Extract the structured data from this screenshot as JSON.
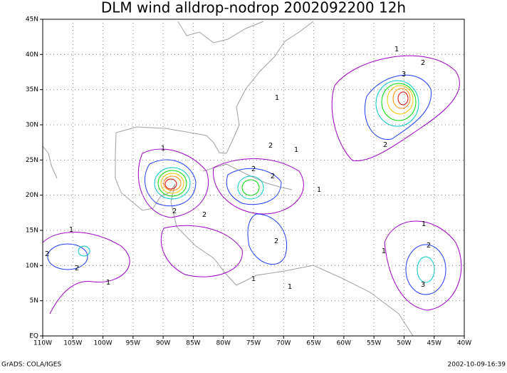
{
  "title": "DLM wind alldrop-nodrop 2002092200 12h",
  "map": {
    "lon_labels": [
      "110W",
      "105W",
      "100W",
      "95W",
      "90W",
      "85W",
      "80W",
      "75W",
      "70W",
      "65W",
      "60W",
      "55W",
      "50W",
      "45W",
      "40W"
    ],
    "lat_labels": [
      "EQ",
      "5N",
      "10N",
      "15N",
      "20N",
      "25N",
      "30N",
      "35N",
      "40N",
      "45N"
    ]
  },
  "contour_labels": [
    1,
    1,
    1,
    2,
    3,
    2,
    1,
    2,
    2,
    2,
    1,
    2,
    2,
    1,
    2,
    2,
    1,
    2,
    3,
    1,
    1,
    2,
    1,
    1
  ],
  "footer": {
    "left": "GrADS: COLA/IGES",
    "right": "2002-10-09-16:39"
  }
}
